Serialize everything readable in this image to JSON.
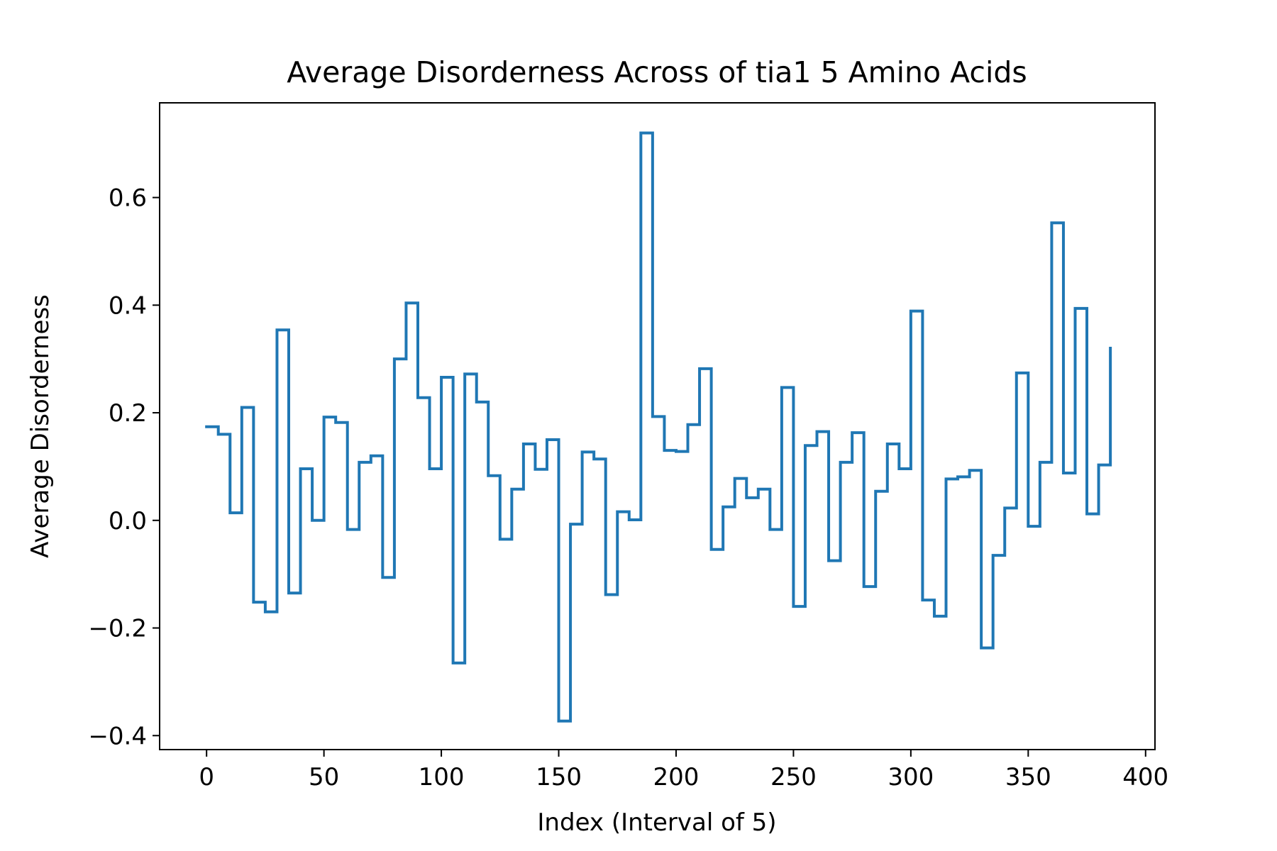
{
  "chart_data": {
    "type": "line",
    "title": "Average Disorderness Across of tia1 5 Amino Acids",
    "xlabel": "Index (Interval of 5)",
    "ylabel": "Average Disorderness",
    "xlim": [
      -20,
      404
    ],
    "ylim": [
      -0.426,
      0.776
    ],
    "xticks": [
      0,
      50,
      100,
      150,
      200,
      250,
      300,
      350,
      400
    ],
    "xtick_labels": [
      "0",
      "50",
      "100",
      "150",
      "200",
      "250",
      "300",
      "350",
      "400"
    ],
    "yticks": [
      -0.4,
      -0.2,
      0.0,
      0.2,
      0.4,
      0.6
    ],
    "ytick_labels": [
      "−0.4",
      "−0.2",
      "0.0",
      "0.2",
      "0.4",
      "0.6"
    ],
    "grid": false,
    "legend": false,
    "series": [
      {
        "color": "#1f77b4",
        "drawstyle": "steps",
        "x": [
          0,
          5,
          10,
          15,
          20,
          25,
          30,
          35,
          40,
          45,
          50,
          55,
          60,
          65,
          70,
          75,
          80,
          85,
          90,
          95,
          100,
          105,
          110,
          115,
          120,
          125,
          130,
          135,
          140,
          145,
          150,
          155,
          160,
          165,
          170,
          175,
          180,
          185,
          190,
          195,
          200,
          205,
          210,
          215,
          220,
          225,
          230,
          235,
          240,
          245,
          250,
          255,
          260,
          265,
          270,
          275,
          280,
          285,
          290,
          295,
          300,
          305,
          310,
          315,
          320,
          325,
          330,
          335,
          340,
          345,
          350,
          355,
          360,
          365,
          370,
          375,
          380,
          385
        ],
        "values": [
          0.174,
          0.16,
          0.014,
          0.21,
          -0.152,
          -0.17,
          0.354,
          -0.135,
          0.096,
          0.0,
          0.192,
          0.182,
          -0.017,
          0.108,
          0.12,
          -0.106,
          0.3,
          0.404,
          0.228,
          0.096,
          0.266,
          -0.265,
          0.272,
          0.22,
          0.083,
          -0.035,
          0.058,
          0.142,
          0.095,
          0.15,
          -0.373,
          -0.007,
          0.127,
          0.114,
          -0.138,
          0.016,
          0.001,
          0.72,
          0.193,
          0.13,
          0.128,
          0.178,
          0.282,
          -0.054,
          0.025,
          0.078,
          0.042,
          0.058,
          -0.017,
          0.247,
          -0.16,
          0.139,
          0.165,
          -0.075,
          0.108,
          0.163,
          -0.123,
          0.054,
          0.142,
          0.096,
          0.389,
          -0.148,
          -0.178,
          0.077,
          0.081,
          0.093,
          -0.237,
          -0.065,
          0.023,
          0.274,
          -0.011,
          0.108,
          0.553,
          0.088,
          0.394,
          0.012,
          0.103,
          0.32
        ]
      }
    ]
  }
}
